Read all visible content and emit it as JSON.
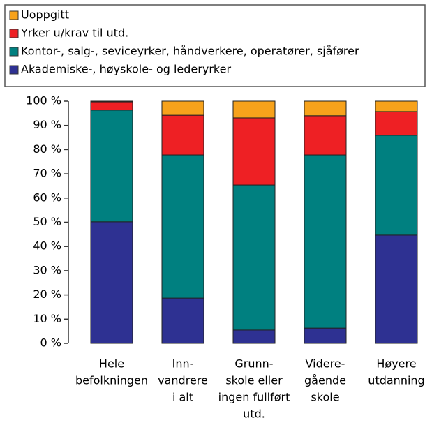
{
  "chart_data": {
    "type": "stacked_bar",
    "categories": [
      [
        "Hele",
        "befolkningen"
      ],
      [
        "Inn-",
        "vandrere",
        "i alt"
      ],
      [
        "Grunn-",
        "skole eller",
        "ingen fullført",
        "utd."
      ],
      [
        "Videre-",
        "gående",
        "skole"
      ],
      [
        "Høyere",
        "utdanning"
      ]
    ],
    "series": [
      {
        "name": "Akademiske-, høyskole- og lederyrker",
        "color": "#2e3192",
        "values": [
          50.2,
          18.7,
          5.5,
          6.3,
          44.7
        ]
      },
      {
        "name": "Kontor-, salg-, seviceyrker, håndverkere, operatører, sjåfører",
        "color": "#008080",
        "values": [
          46.1,
          59.1,
          59.9,
          71.5,
          41.2
        ]
      },
      {
        "name": "Yrker u/krav til utd.",
        "color": "#ee2024",
        "values": [
          3.4,
          16.4,
          27.7,
          16.2,
          9.8
        ]
      },
      {
        "name": "Uoppgitt",
        "color": "#f7a21b",
        "values": [
          0.3,
          5.8,
          6.9,
          6.0,
          4.3
        ]
      }
    ],
    "ylim": [
      0,
      100
    ],
    "yticks": [
      {
        "value": 0,
        "label": "0 %"
      },
      {
        "value": 10,
        "label": "10 %"
      },
      {
        "value": 20,
        "label": "20 %"
      },
      {
        "value": 30,
        "label": "30 %"
      },
      {
        "value": 40,
        "label": "40 %"
      },
      {
        "value": 50,
        "label": "50 %"
      },
      {
        "value": 60,
        "label": "60 %"
      },
      {
        "value": 70,
        "label": "70 %"
      },
      {
        "value": 80,
        "label": "80 %"
      },
      {
        "value": 90,
        "label": "90 %"
      },
      {
        "value": 100,
        "label": "100 %"
      }
    ],
    "legend": "top"
  }
}
